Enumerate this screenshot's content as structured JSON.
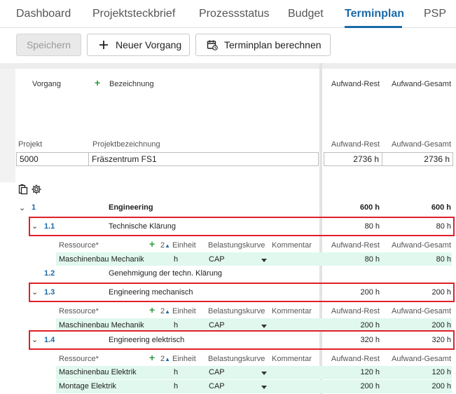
{
  "tabs": [
    {
      "label": "Dashboard"
    },
    {
      "label": "Projektsteckbrief"
    },
    {
      "label": "Prozessstatus"
    },
    {
      "label": "Budget"
    },
    {
      "label": "Terminplan",
      "active": true
    },
    {
      "label": "PSP"
    }
  ],
  "toolbar": {
    "save_label": "Speichern",
    "new_task_label": "Neuer Vorgang",
    "calc_label": "Terminplan berechnen"
  },
  "grid_header": {
    "vorgang": "Vorgang",
    "bezeichnung": "Bezeichnung",
    "aufwand_rest": "Aufwand-Rest",
    "aufwand_gesamt": "Aufwand-Gesamt"
  },
  "project": {
    "label_projekt": "Projekt",
    "label_bezeichnung": "Projektbezeichnung",
    "label_rest": "Aufwand-Rest",
    "label_gesamt": "Aufwand-Gesamt",
    "id": "5000",
    "name": "Fräszentrum FS1",
    "rest": "2736 h",
    "gesamt": "2736 h"
  },
  "res_header": {
    "ressource": "Ressource*",
    "sort_num": "2",
    "einheit": "Einheit",
    "kurve": "Belastungskurve",
    "kommentar": "Kommentar",
    "rest": "Aufwand-Rest",
    "gesamt": "Aufwand-Gesamt"
  },
  "rows": {
    "r1": {
      "num": "1",
      "name": "Engineering",
      "rest": "600 h",
      "gesamt": "600 h"
    },
    "r11": {
      "num": "1.1",
      "name": "Technische Klärung",
      "rest": "80 h",
      "gesamt": "80 h"
    },
    "r11_res": [
      {
        "name": "Maschinenbau Mechanik",
        "unit": "h",
        "curve": "CAP",
        "rest": "80 h",
        "gesamt": "80 h"
      }
    ],
    "r12": {
      "num": "1.2",
      "name": "Genehmigung der techn. Klärung"
    },
    "r13": {
      "num": "1.3",
      "name": "Engineering mechanisch",
      "rest": "200 h",
      "gesamt": "200 h"
    },
    "r13_res": [
      {
        "name": "Maschinenbau Mechanik",
        "unit": "h",
        "curve": "CAP",
        "rest": "200 h",
        "gesamt": "200 h"
      }
    ],
    "r14": {
      "num": "1.4",
      "name": "Engineering elektrisch",
      "rest": "320 h",
      "gesamt": "320 h"
    },
    "r14_res": [
      {
        "name": "Maschinenbau Elektrik",
        "unit": "h",
        "curve": "CAP",
        "rest": "120 h",
        "gesamt": "120 h"
      },
      {
        "name": "Montage Elektrik",
        "unit": "h",
        "curve": "CAP",
        "rest": "200 h",
        "gesamt": "200 h"
      }
    ]
  },
  "colors": {
    "accent": "#1a6aa8",
    "highlight": "#e0202a",
    "resource_row": "#e0f8ee",
    "add_green": "#2d9b3f"
  }
}
